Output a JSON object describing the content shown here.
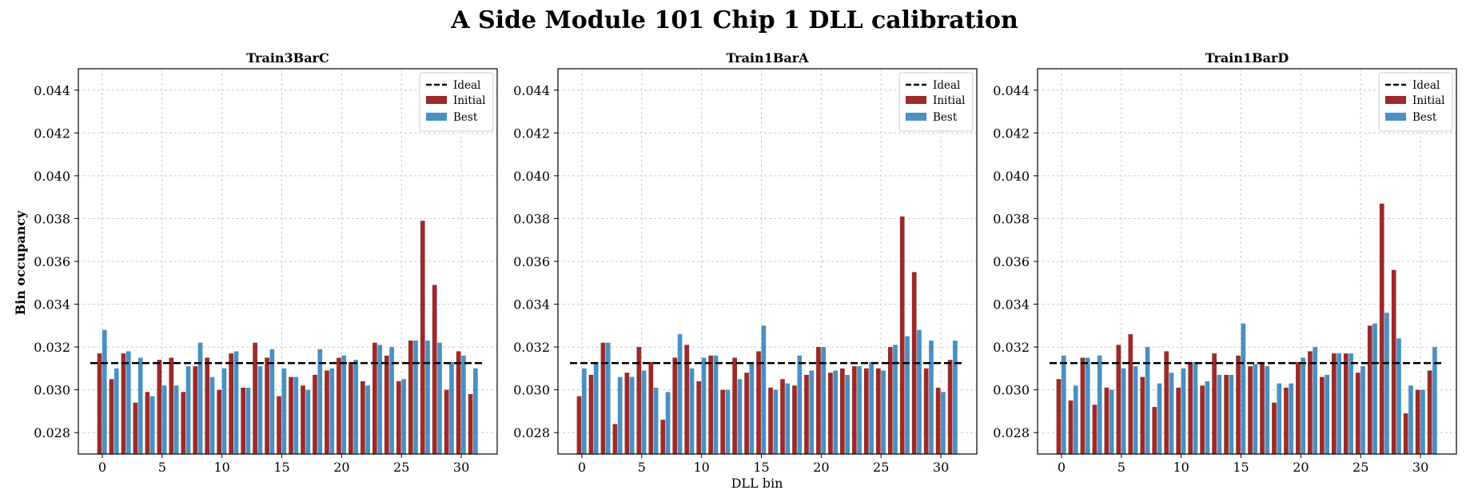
{
  "suptitle": "A Side Module 101 Chip 1 DLL calibration",
  "xlabel": "DLL bin",
  "ylabel": "Bin occupancy",
  "colors": {
    "ideal": "#000000",
    "initial": "#9b2a2a",
    "best": "#4a90c2",
    "grid": "#cccccc"
  },
  "legend": {
    "ideal": "Ideal",
    "initial": "Initial",
    "best": "Best",
    "placement": "upper right"
  },
  "chart_data": [
    {
      "type": "bar",
      "title": "Train3BarC",
      "xlabel": "",
      "ylabel": "Bin occupancy",
      "ylim": [
        0.027,
        0.045
      ],
      "xlim": [
        -2,
        33
      ],
      "xticks": [
        0,
        5,
        10,
        15,
        20,
        25,
        30
      ],
      "yticks": [
        0.028,
        0.03,
        0.032,
        0.034,
        0.036,
        0.038,
        0.04,
        0.042,
        0.044
      ],
      "grid": true,
      "legend_placement": "top-right",
      "ideal": 0.03125,
      "x": [
        0,
        1,
        2,
        3,
        4,
        5,
        6,
        7,
        8,
        9,
        10,
        11,
        12,
        13,
        14,
        15,
        16,
        17,
        18,
        19,
        20,
        21,
        22,
        23,
        24,
        25,
        26,
        27,
        28,
        29,
        30,
        31
      ],
      "series": [
        {
          "name": "Initial",
          "values": [
            0.0317,
            0.0305,
            0.0317,
            0.0294,
            0.0299,
            0.0314,
            0.0315,
            0.0299,
            0.0311,
            0.0315,
            0.03,
            0.0317,
            0.0301,
            0.0322,
            0.0315,
            0.0297,
            0.0306,
            0.0302,
            0.0307,
            0.0309,
            0.0315,
            0.0313,
            0.0304,
            0.0322,
            0.0316,
            0.0304,
            0.0323,
            0.0379,
            0.0349,
            0.03,
            0.0318,
            0.0298
          ]
        },
        {
          "name": "Best",
          "values": [
            0.0328,
            0.031,
            0.0318,
            0.0315,
            0.0297,
            0.0302,
            0.0302,
            0.0311,
            0.0322,
            0.0306,
            0.031,
            0.0318,
            0.0301,
            0.0311,
            0.0319,
            0.031,
            0.0306,
            0.03,
            0.0319,
            0.031,
            0.0316,
            0.0314,
            0.0302,
            0.0321,
            0.032,
            0.0305,
            0.0323,
            0.0323,
            0.0322,
            0.0313,
            0.0316,
            0.031
          ]
        }
      ]
    },
    {
      "type": "bar",
      "title": "Train1BarA",
      "xlabel": "DLL bin",
      "ylabel": "",
      "ylim": [
        0.027,
        0.045
      ],
      "xlim": [
        -2,
        33
      ],
      "xticks": [
        0,
        5,
        10,
        15,
        20,
        25,
        30
      ],
      "yticks": [
        0.028,
        0.03,
        0.032,
        0.034,
        0.036,
        0.038,
        0.04,
        0.042,
        0.044
      ],
      "grid": true,
      "legend_placement": "top-right",
      "ideal": 0.03125,
      "x": [
        0,
        1,
        2,
        3,
        4,
        5,
        6,
        7,
        8,
        9,
        10,
        11,
        12,
        13,
        14,
        15,
        16,
        17,
        18,
        19,
        20,
        21,
        22,
        23,
        24,
        25,
        26,
        27,
        28,
        29,
        30,
        31
      ],
      "series": [
        {
          "name": "Initial",
          "values": [
            0.0297,
            0.0307,
            0.0322,
            0.0284,
            0.0308,
            0.032,
            0.0313,
            0.0286,
            0.0315,
            0.0321,
            0.0304,
            0.0316,
            0.03,
            0.0315,
            0.0308,
            0.0318,
            0.0301,
            0.0305,
            0.0302,
            0.0307,
            0.032,
            0.0308,
            0.031,
            0.0311,
            0.031,
            0.031,
            0.032,
            0.0381,
            0.0355,
            0.031,
            0.0301,
            0.0314
          ]
        },
        {
          "name": "Best",
          "values": [
            0.031,
            0.0313,
            0.0322,
            0.0306,
            0.0306,
            0.0309,
            0.0301,
            0.0299,
            0.0326,
            0.031,
            0.0315,
            0.0316,
            0.03,
            0.0305,
            0.0313,
            0.033,
            0.03,
            0.0303,
            0.0316,
            0.0309,
            0.032,
            0.0309,
            0.0307,
            0.0311,
            0.0313,
            0.0309,
            0.0321,
            0.0325,
            0.0328,
            0.0323,
            0.0299,
            0.0323
          ]
        }
      ]
    },
    {
      "type": "bar",
      "title": "Train1BarD",
      "xlabel": "",
      "ylabel": "",
      "ylim": [
        0.027,
        0.045
      ],
      "xlim": [
        -2,
        33
      ],
      "xticks": [
        0,
        5,
        10,
        15,
        20,
        25,
        30
      ],
      "yticks": [
        0.028,
        0.03,
        0.032,
        0.034,
        0.036,
        0.038,
        0.04,
        0.042,
        0.044
      ],
      "grid": true,
      "legend_placement": "top-right",
      "ideal": 0.03125,
      "x": [
        0,
        1,
        2,
        3,
        4,
        5,
        6,
        7,
        8,
        9,
        10,
        11,
        12,
        13,
        14,
        15,
        16,
        17,
        18,
        19,
        20,
        21,
        22,
        23,
        24,
        25,
        26,
        27,
        28,
        29,
        30,
        31
      ],
      "series": [
        {
          "name": "Initial",
          "values": [
            0.0305,
            0.0295,
            0.0315,
            0.0293,
            0.0301,
            0.0321,
            0.0326,
            0.0306,
            0.0292,
            0.0318,
            0.0301,
            0.0313,
            0.0302,
            0.0317,
            0.0307,
            0.0316,
            0.0311,
            0.0313,
            0.0294,
            0.0301,
            0.0313,
            0.0318,
            0.0306,
            0.0317,
            0.0317,
            0.0308,
            0.033,
            0.0387,
            0.0356,
            0.0289,
            0.03,
            0.0309
          ]
        },
        {
          "name": "Best",
          "values": [
            0.0316,
            0.0302,
            0.0315,
            0.0316,
            0.03,
            0.031,
            0.0311,
            0.032,
            0.0303,
            0.0308,
            0.031,
            0.0313,
            0.0304,
            0.0307,
            0.0307,
            0.0331,
            0.0312,
            0.0311,
            0.0303,
            0.0303,
            0.0315,
            0.032,
            0.0307,
            0.0317,
            0.0317,
            0.0311,
            0.0331,
            0.0336,
            0.0324,
            0.0302,
            0.03,
            0.032
          ]
        }
      ]
    }
  ]
}
